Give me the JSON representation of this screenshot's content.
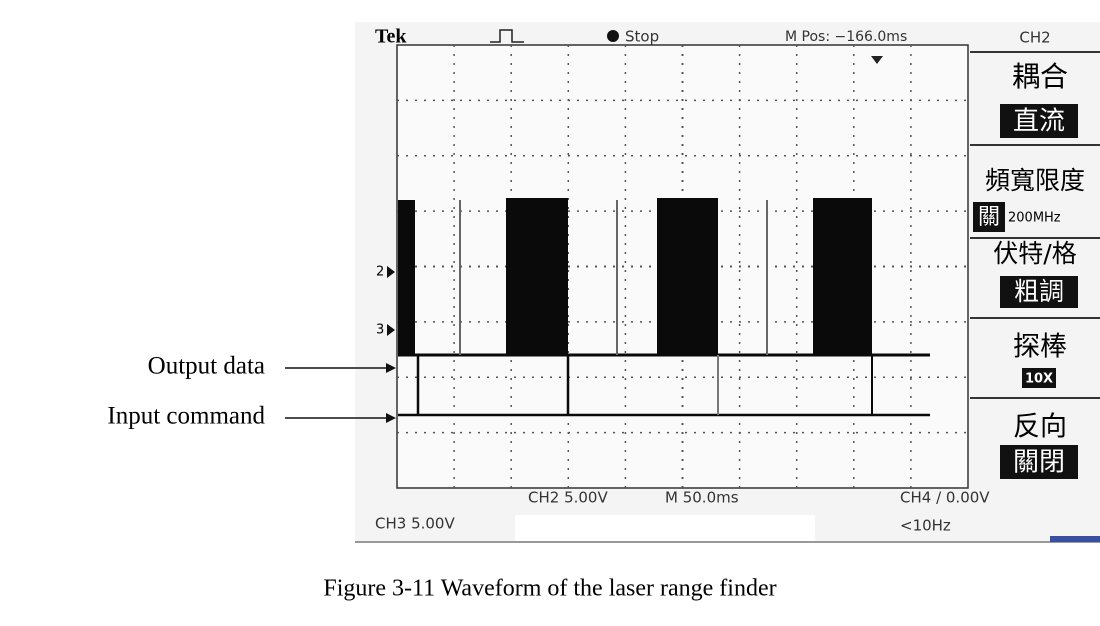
{
  "scope": {
    "header": {
      "brand": "Tek",
      "status": "Stop",
      "position": "M Pos: −166.0ms"
    },
    "menu": {
      "channel": "CH2",
      "items": [
        {
          "label": "耦合",
          "value": "直流"
        },
        {
          "label": "頻寬限度",
          "value": "關",
          "extra": "200MHz"
        },
        {
          "label": "伏特/格",
          "value": "粗調"
        },
        {
          "label": "探棒",
          "value": "10X"
        },
        {
          "label": "反向",
          "value": "關閉"
        }
      ]
    },
    "markers": [
      "2",
      "3"
    ],
    "footer": {
      "ch2": "CH2 5.00V",
      "time": "M 50.0ms",
      "ch4": "CH4 / 0.00V",
      "ch3": "CH3 5.00V",
      "freq": "<10Hz"
    }
  },
  "annotations": [
    "Output data",
    "Input command"
  ],
  "caption": "Figure 3-11 Waveform of the laser range finder"
}
